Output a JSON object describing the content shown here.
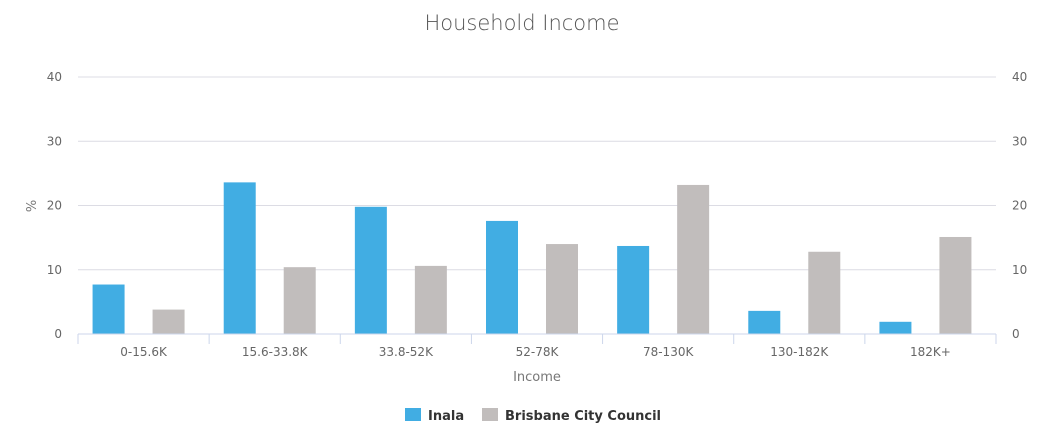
{
  "chart_data": {
    "type": "bar",
    "title": "Household Income",
    "xlabel": "Income",
    "ylabel": "%",
    "ylim": [
      0,
      40
    ],
    "yticks": [
      0,
      10,
      20,
      30,
      40
    ],
    "categories": [
      "0-15.6K",
      "15.6-33.8K",
      "33.8-52K",
      "52-78K",
      "78-130K",
      "130-182K",
      "182K+"
    ],
    "series": [
      {
        "name": "Inala",
        "color": "#41ade3",
        "values": [
          7.7,
          23.6,
          19.8,
          17.6,
          13.7,
          3.6,
          1.9
        ]
      },
      {
        "name": "Brisbane City Council",
        "color": "#c1bdbc",
        "values": [
          3.8,
          10.4,
          10.6,
          14.0,
          23.2,
          12.8,
          15.1
        ]
      }
    ],
    "grid": true,
    "legend_position": "bottom-center"
  }
}
